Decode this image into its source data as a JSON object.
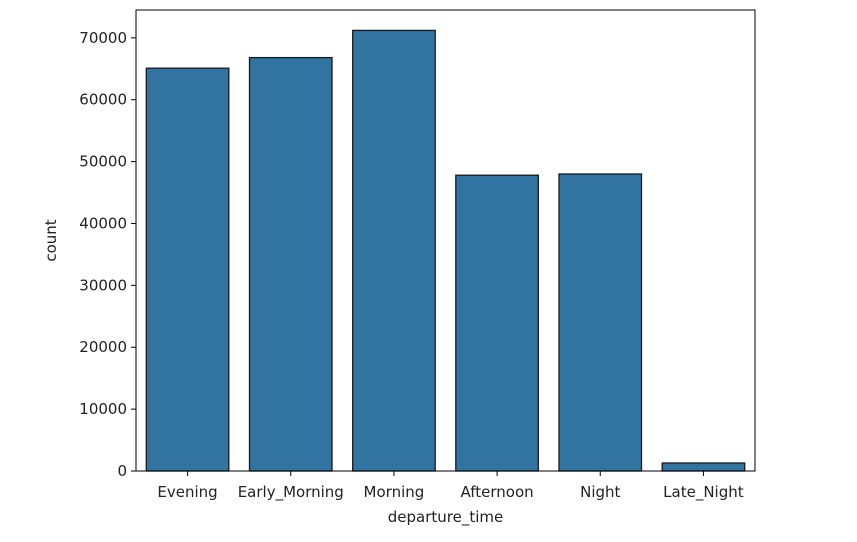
{
  "chart_data": {
    "type": "bar",
    "title": "",
    "xlabel": "departure_time",
    "ylabel": "count",
    "categories": [
      "Evening",
      "Early_Morning",
      "Morning",
      "Afternoon",
      "Night",
      "Late_Night"
    ],
    "values": [
      65100,
      66800,
      71200,
      47800,
      48000,
      1300
    ],
    "ylim": [
      0,
      74500
    ],
    "yticks": [
      0,
      10000,
      20000,
      30000,
      40000,
      50000,
      60000,
      70000
    ],
    "bar_color": "#3274a1",
    "grid": false,
    "legend": "none"
  }
}
